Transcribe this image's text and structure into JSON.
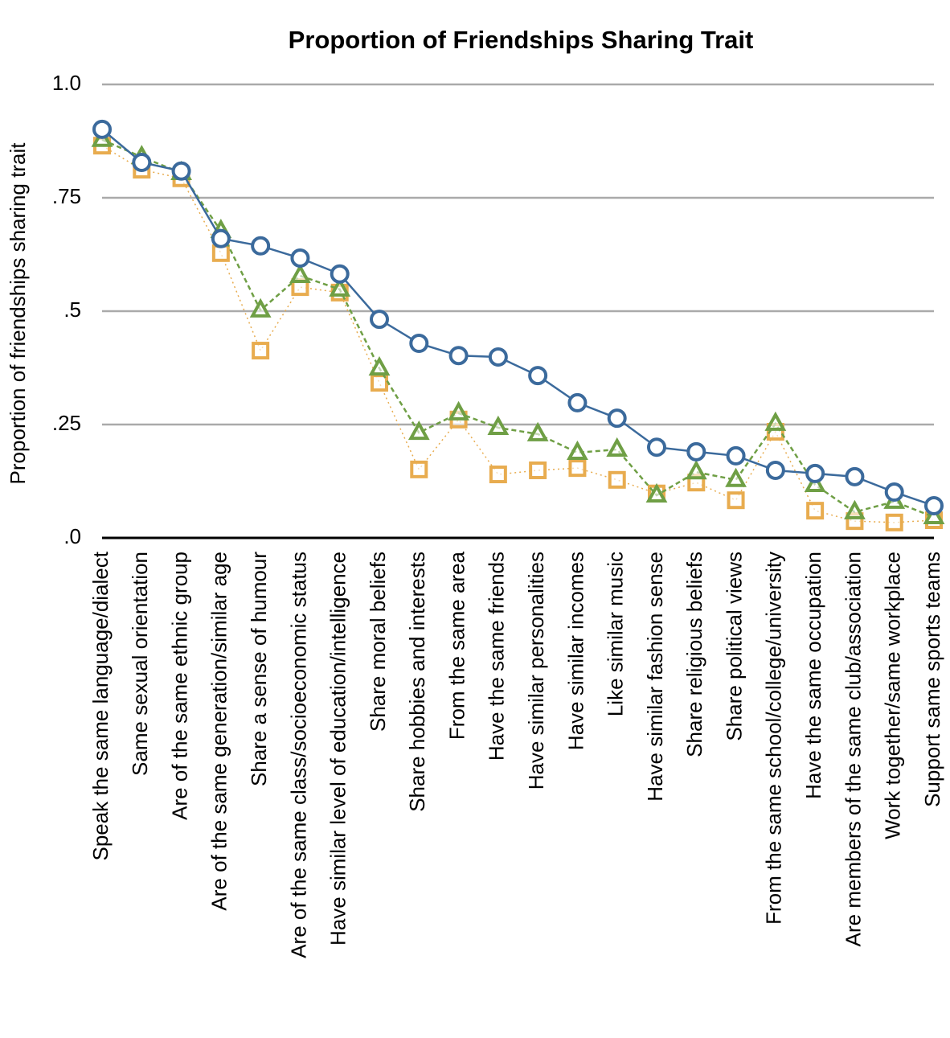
{
  "chart_data": {
    "type": "line",
    "title": "Proportion of Friendships Sharing Trait",
    "y_label": "Proportion of friendships sharing trait",
    "categories": [
      "Speak the same language/dialect",
      "Same sexual orientation",
      "Are of the same ethnic group",
      "Are of the same generation/similar age",
      "Share a sense of humour",
      "Are of the same class/socioeconomic  status",
      "Have similar level of education/intelligence",
      "Share moral beliefs",
      "Share hobbies and interests",
      "From the same area",
      "Have the same friends",
      "Have similar personalities",
      "Have similar incomes",
      "Like similar music",
      "Have similar fashion sense",
      "Share religious beliefs",
      "Share political views",
      "From the same school/college/university",
      "Have the same occupation",
      "Are members of the same club/association",
      "Work together/same workplace",
      "Support same sports  teams"
    ],
    "series": [
      {
        "color": "#3b6a9c",
        "marker": "circle",
        "dash": "solid",
        "values": [
          0.901,
          0.828,
          0.809,
          0.66,
          0.644,
          0.617,
          0.582,
          0.482,
          0.429,
          0.402,
          0.399,
          0.358,
          0.298,
          0.264,
          0.2,
          0.19,
          0.181,
          0.149,
          0.142,
          0.135,
          0.101,
          0.071
        ]
      },
      {
        "color": "#6f9f45",
        "marker": "triangle",
        "dash": "dashed",
        "values": [
          0.878,
          0.84,
          0.805,
          0.677,
          0.502,
          0.578,
          0.548,
          0.374,
          0.232,
          0.275,
          0.243,
          0.229,
          0.188,
          0.195,
          0.094,
          0.145,
          0.128,
          0.252,
          0.117,
          0.057,
          0.08,
          0.046
        ]
      },
      {
        "color": "#e8ac4f",
        "marker": "square",
        "dash": "dotted",
        "values": [
          0.865,
          0.812,
          0.793,
          0.628,
          0.413,
          0.553,
          0.541,
          0.342,
          0.151,
          0.261,
          0.14,
          0.149,
          0.154,
          0.128,
          0.098,
          0.122,
          0.083,
          0.234,
          0.06,
          0.037,
          0.034,
          0.039
        ]
      }
    ],
    "ylim": [
      0,
      1
    ],
    "yticks": [
      {
        "value": 0,
        "label": ".0"
      },
      {
        "value": 0.25,
        "label": ".25"
      },
      {
        "value": 0.5,
        "label": ".5"
      },
      {
        "value": 0.75,
        "label": ".75"
      },
      {
        "value": 1,
        "label": "1.0"
      }
    ],
    "grid": true
  }
}
